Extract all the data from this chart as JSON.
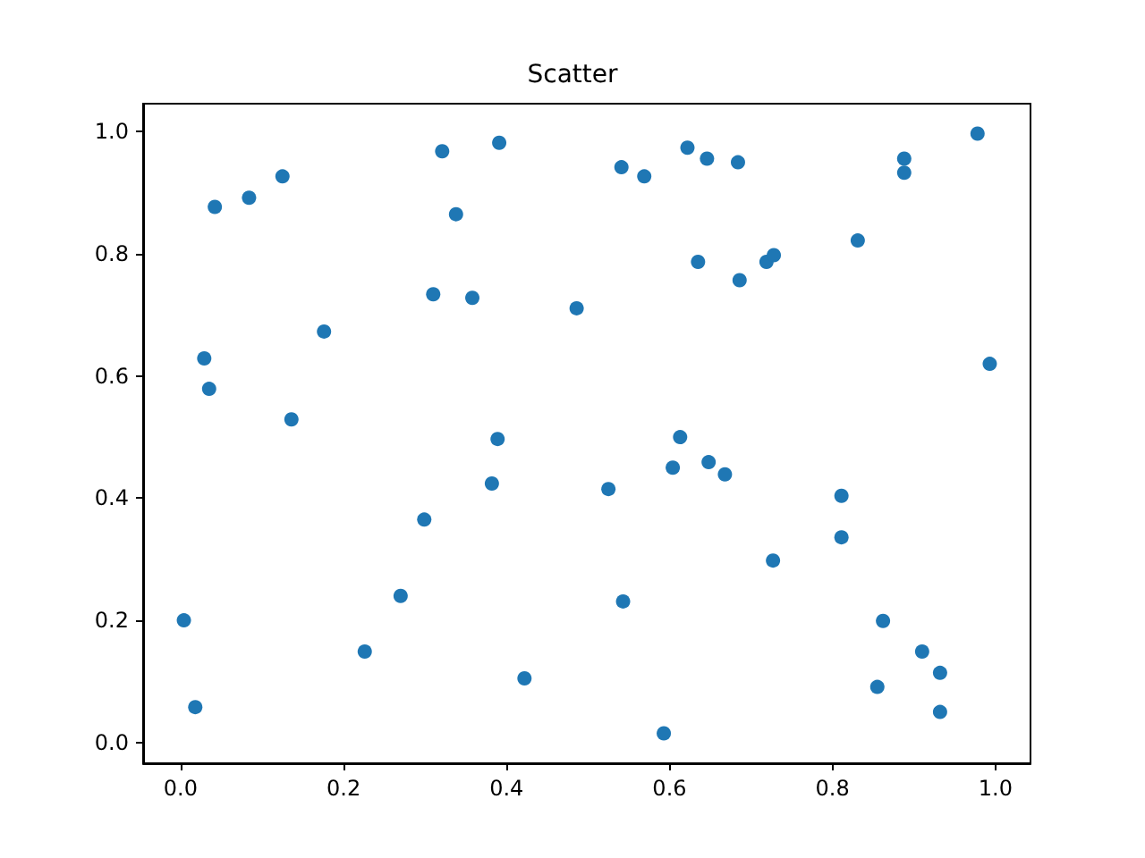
{
  "chart_data": {
    "type": "scatter",
    "title": "Scatter",
    "x": [
      0.004,
      0.018,
      0.029,
      0.035,
      0.042,
      0.084,
      0.125,
      0.136,
      0.176,
      0.226,
      0.27,
      0.299,
      0.31,
      0.321,
      0.338,
      0.358,
      0.382,
      0.389,
      0.391,
      0.422,
      0.486,
      0.525,
      0.541,
      0.543,
      0.569,
      0.593,
      0.604,
      0.613,
      0.622,
      0.635,
      0.646,
      0.648,
      0.668,
      0.684,
      0.686,
      0.719,
      0.728,
      0.727,
      0.811,
      0.811,
      0.831,
      0.855,
      0.862,
      0.888,
      0.888,
      0.91,
      0.932,
      0.932,
      0.978,
      0.993
    ],
    "values": [
      0.2,
      0.058,
      0.629,
      0.579,
      0.877,
      0.892,
      0.927,
      0.529,
      0.673,
      0.149,
      0.24,
      0.365,
      0.734,
      0.968,
      0.865,
      0.728,
      0.424,
      0.497,
      0.982,
      0.105,
      0.711,
      0.415,
      0.942,
      0.231,
      0.927,
      0.015,
      0.45,
      0.5,
      0.974,
      0.787,
      0.956,
      0.459,
      0.439,
      0.95,
      0.757,
      0.787,
      0.798,
      0.298,
      0.404,
      0.336,
      0.822,
      0.091,
      0.199,
      0.956,
      0.933,
      0.149,
      0.114,
      0.05,
      0.997,
      0.62
    ],
    "color": "#1f77b4",
    "marker": "circle",
    "grid": false,
    "xlim": [
      -0.046,
      1.043
    ],
    "ylim": [
      -0.034,
      1.046
    ],
    "xticks": [
      {
        "value": 0,
        "label": "0.0"
      },
      0.2,
      0.4,
      0.6,
      0.8,
      {
        "value": 1,
        "label": "1.0"
      }
    ],
    "yticks": [
      {
        "value": 0,
        "label": "0.0"
      },
      0.2,
      0.4,
      0.6,
      0.8,
      {
        "value": 1,
        "label": "1.0"
      }
    ]
  }
}
